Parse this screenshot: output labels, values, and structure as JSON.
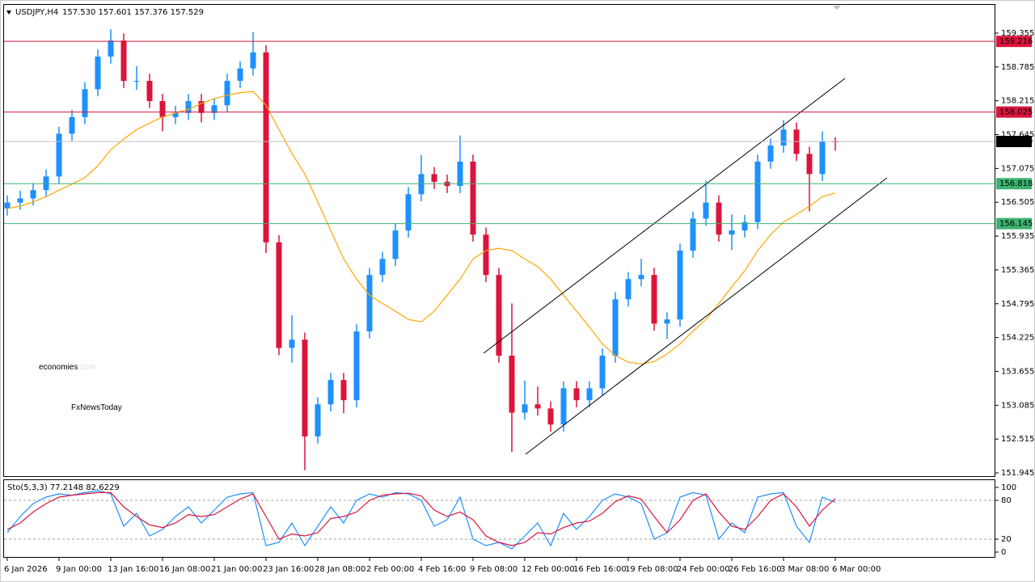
{
  "chart_data": [
    {
      "type": "candlestick",
      "title": "USDJPY,H4",
      "subtitle": "157.530 157.601 157.376 157.529",
      "watermark": [
        "economies",
        ".com",
        "FxNewsToday"
      ],
      "up_color": "#1e90ff",
      "down_color": "#dc143c",
      "ma_color": "#ffa500",
      "categories": [
        "6 Jan 2026",
        null,
        null,
        null,
        "9 Jan 00:00",
        null,
        null,
        null,
        "13 Jan 16:00",
        null,
        null,
        null,
        "16 Jan 08:00",
        null,
        null,
        null,
        "21 Jan 00:00",
        null,
        null,
        null,
        "23 Jan 16:00",
        null,
        null,
        null,
        "28 Jan 08:00",
        null,
        null,
        null,
        "2 Feb 00:00",
        null,
        null,
        null,
        "4 Feb 16:00",
        null,
        null,
        null,
        "9 Feb 08:00",
        null,
        null,
        null,
        "12 Feb 00:00",
        null,
        null,
        null,
        "16 Feb 16:00",
        null,
        null,
        null,
        "19 Feb 08:00",
        null,
        null,
        null,
        "24 Feb 00:00",
        null,
        null,
        null,
        "26 Feb 16:00",
        null,
        null,
        null,
        "3 Mar 08:00",
        null,
        null,
        null,
        "6 Mar 00:00"
      ],
      "ohlc": [
        [
          156.4,
          156.62,
          156.28,
          156.5
        ],
        [
          156.5,
          156.7,
          156.38,
          156.57
        ],
        [
          156.57,
          156.83,
          156.45,
          156.71
        ],
        [
          156.71,
          157.06,
          156.59,
          156.94
        ],
        [
          156.94,
          157.78,
          156.82,
          157.66
        ],
        [
          157.66,
          158.06,
          157.54,
          157.94
        ],
        [
          157.94,
          158.53,
          157.82,
          158.41
        ],
        [
          158.41,
          159.08,
          158.29,
          158.96
        ],
        [
          158.96,
          159.42,
          158.84,
          159.23
        ],
        [
          159.23,
          159.35,
          158.43,
          158.55
        ],
        [
          158.55,
          158.8,
          158.4,
          158.55
        ],
        [
          158.55,
          158.67,
          158.09,
          158.21
        ],
        [
          158.21,
          158.33,
          157.7,
          157.94
        ],
        [
          157.94,
          158.13,
          157.82,
          158.01
        ],
        [
          158.01,
          158.33,
          157.89,
          158.21
        ],
        [
          158.21,
          158.33,
          157.85,
          158.01
        ],
        [
          158.01,
          158.26,
          157.89,
          158.14
        ],
        [
          158.14,
          158.67,
          158.02,
          158.55
        ],
        [
          158.55,
          158.88,
          158.43,
          158.76
        ],
        [
          158.76,
          159.37,
          158.64,
          159.03
        ],
        [
          159.03,
          159.15,
          155.65,
          155.83
        ],
        [
          155.83,
          155.95,
          153.93,
          154.05
        ],
        [
          154.05,
          154.6,
          153.8,
          154.19
        ],
        [
          154.19,
          154.31,
          151.99,
          152.56
        ],
        [
          152.56,
          153.22,
          152.44,
          153.1
        ],
        [
          153.1,
          153.63,
          152.98,
          153.51
        ],
        [
          153.51,
          153.63,
          152.95,
          153.17
        ],
        [
          153.17,
          154.45,
          153.05,
          154.33
        ],
        [
          154.33,
          155.4,
          154.21,
          155.28
        ],
        [
          155.28,
          155.67,
          155.16,
          155.55
        ],
        [
          155.55,
          156.15,
          155.43,
          156.03
        ],
        [
          156.03,
          156.76,
          155.91,
          156.64
        ],
        [
          156.64,
          157.3,
          156.52,
          156.98
        ],
        [
          156.98,
          157.1,
          156.73,
          156.85
        ],
        [
          156.85,
          156.97,
          156.66,
          156.78
        ],
        [
          156.78,
          157.63,
          156.66,
          157.19
        ],
        [
          157.19,
          157.31,
          155.84,
          155.96
        ],
        [
          155.96,
          156.08,
          155.16,
          155.28
        ],
        [
          155.28,
          155.4,
          153.8,
          153.92
        ],
        [
          153.92,
          154.8,
          152.3,
          152.96
        ],
        [
          152.96,
          153.5,
          152.84,
          153.1
        ],
        [
          153.1,
          153.4,
          152.91,
          153.03
        ],
        [
          153.03,
          153.15,
          152.64,
          152.76
        ],
        [
          152.76,
          153.49,
          152.64,
          153.37
        ],
        [
          153.37,
          153.49,
          153.05,
          153.17
        ],
        [
          153.17,
          153.49,
          153.05,
          153.37
        ],
        [
          153.37,
          154.04,
          153.25,
          153.92
        ],
        [
          153.92,
          154.99,
          153.8,
          154.87
        ],
        [
          154.87,
          155.33,
          154.75,
          155.21
        ],
        [
          155.21,
          155.55,
          155.09,
          155.28
        ],
        [
          155.28,
          155.4,
          154.34,
          154.46
        ],
        [
          154.46,
          154.65,
          154.2,
          154.53
        ],
        [
          154.53,
          155.81,
          154.41,
          155.69
        ],
        [
          155.69,
          156.35,
          155.57,
          156.23
        ],
        [
          156.23,
          156.87,
          156.11,
          156.5
        ],
        [
          156.5,
          156.62,
          155.84,
          155.96
        ],
        [
          155.96,
          156.3,
          155.7,
          156.03
        ],
        [
          156.03,
          156.29,
          155.91,
          156.17
        ],
        [
          156.17,
          157.31,
          156.05,
          157.19
        ],
        [
          157.19,
          157.58,
          157.07,
          157.46
        ],
        [
          157.46,
          157.89,
          157.34,
          157.73
        ],
        [
          157.73,
          157.85,
          157.2,
          157.32
        ],
        [
          157.32,
          157.44,
          156.35,
          156.98
        ],
        [
          156.98,
          157.7,
          156.86,
          157.53
        ],
        [
          157.53,
          157.601,
          157.376,
          157.529
        ]
      ],
      "ma": [
        156.4,
        156.44,
        156.51,
        156.6,
        156.71,
        156.81,
        156.92,
        157.12,
        157.39,
        157.57,
        157.73,
        157.84,
        157.94,
        158.01,
        158.07,
        158.17,
        158.25,
        158.31,
        158.35,
        158.37,
        158.14,
        157.73,
        157.33,
        156.98,
        156.51,
        156.03,
        155.55,
        155.21,
        154.94,
        154.8,
        154.67,
        154.53,
        154.49,
        154.67,
        154.94,
        155.21,
        155.55,
        155.69,
        155.73,
        155.69,
        155.55,
        155.42,
        155.21,
        154.94,
        154.67,
        154.4,
        154.12,
        153.92,
        153.81,
        153.78,
        153.82,
        153.95,
        154.12,
        154.33,
        154.53,
        154.8,
        155.08,
        155.35,
        155.69,
        155.96,
        156.17,
        156.3,
        156.44,
        156.6,
        156.66
      ],
      "levels": [
        {
          "value": 159.216,
          "color": "#dc143c",
          "tag_color": "#dc143c"
        },
        {
          "value": 158.025,
          "color": "#dc143c",
          "tag_color": "#dc143c"
        },
        {
          "value": 157.529,
          "color": "#c0c0c0",
          "tag_color": "#000000"
        },
        {
          "value": 156.818,
          "color": "#3cb371",
          "tag_color": "#3cb371"
        },
        {
          "value": 156.145,
          "color": "#3cb371",
          "tag_color": "#3cb371"
        }
      ],
      "ylim": [
        151.877,
        159.845
      ],
      "yticks": [
        159.355,
        158.785,
        158.215,
        157.645,
        157.075,
        156.505,
        155.935,
        155.365,
        154.795,
        154.225,
        153.655,
        153.085,
        152.515,
        151.945
      ]
    },
    {
      "type": "line",
      "title": "Sto(5,3,3) 77.2148 82.6229",
      "series": [
        {
          "color": "#1e90ff",
          "values": [
            30,
            55,
            75,
            85,
            90,
            88,
            92,
            95,
            90,
            40,
            60,
            25,
            35,
            55,
            70,
            45,
            65,
            85,
            90,
            92,
            10,
            15,
            45,
            10,
            40,
            70,
            45,
            80,
            90,
            85,
            92,
            90,
            80,
            40,
            50,
            85,
            20,
            10,
            15,
            5,
            25,
            45,
            10,
            60,
            35,
            55,
            80,
            90,
            85,
            75,
            20,
            30,
            85,
            92,
            88,
            20,
            45,
            30,
            85,
            90,
            92,
            40,
            15,
            85,
            77.2148
          ]
        },
        {
          "color": "#dc143c",
          "values": [
            35,
            45,
            62,
            75,
            85,
            88,
            90,
            92,
            92,
            70,
            55,
            42,
            38,
            45,
            58,
            55,
            58,
            70,
            82,
            90,
            55,
            20,
            28,
            25,
            30,
            52,
            55,
            62,
            80,
            88,
            90,
            91,
            87,
            65,
            55,
            62,
            50,
            25,
            15,
            10,
            15,
            30,
            28,
            38,
            45,
            48,
            60,
            78,
            87,
            82,
            55,
            30,
            50,
            80,
            90,
            62,
            40,
            35,
            55,
            80,
            90,
            70,
            40,
            65,
            82.6229
          ]
        }
      ],
      "levels": [
        80,
        20
      ],
      "ylim": [
        -8.75,
        112.5
      ],
      "yticks": [
        100,
        80,
        20,
        0
      ]
    }
  ]
}
